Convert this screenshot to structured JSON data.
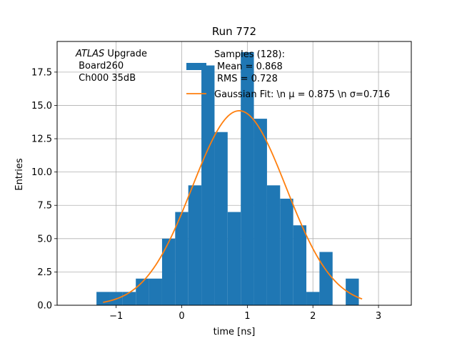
{
  "chart_data": {
    "type": "bar",
    "title": "Run 772",
    "xlabel": "time [ns]",
    "ylabel": "Entries",
    "xlim": [
      -1.9,
      3.5
    ],
    "ylim": [
      0,
      19.8
    ],
    "x_ticks": [
      -1,
      0,
      1,
      2,
      3
    ],
    "x_tick_labels": [
      "−1",
      "0",
      "1",
      "2",
      "3"
    ],
    "y_ticks": [
      0,
      2.5,
      5,
      7.5,
      10,
      12.5,
      15,
      17.5
    ],
    "y_tick_labels": [
      "0.0",
      "2.5",
      "5.0",
      "7.5",
      "10.0",
      "12.5",
      "15.0",
      "17.5"
    ],
    "grid": true,
    "annotation": {
      "italic": "ATLAS",
      "rest": " Upgrade",
      "line2": " Board260",
      "line3": " Ch000 35dB"
    },
    "legend": {
      "position": "top-right",
      "samples_line1": "Samples (128):",
      "samples_line2": "Mean = 0.868",
      "samples_line3": "RMS = 0.728",
      "fit_label": "Gaussian Fit: \\n μ = 0.875 \\n σ=0.716"
    },
    "histogram": {
      "name": "Samples (128):",
      "color": "#1f77b4",
      "bin_edges": [
        -1.3,
        -1.1,
        -0.9,
        -0.7,
        -0.5,
        -0.3,
        -0.1,
        0.1,
        0.3,
        0.5,
        0.7,
        0.9,
        1.1,
        1.3,
        1.5,
        1.7,
        1.9,
        2.1,
        2.3,
        2.5,
        2.7,
        2.9,
        3.1,
        3.3
      ],
      "counts": [
        1,
        1,
        1,
        2,
        2,
        5,
        7,
        9,
        18,
        13,
        7,
        19,
        14,
        9,
        8,
        6,
        1,
        4,
        0,
        2,
        0,
        0,
        0
      ]
    },
    "fit": {
      "name": "Gaussian Fit",
      "color": "#ff7f0e",
      "amplitude": 14.6,
      "mu": 0.875,
      "sigma": 0.716,
      "x_range": [
        -1.2,
        2.75
      ]
    }
  }
}
